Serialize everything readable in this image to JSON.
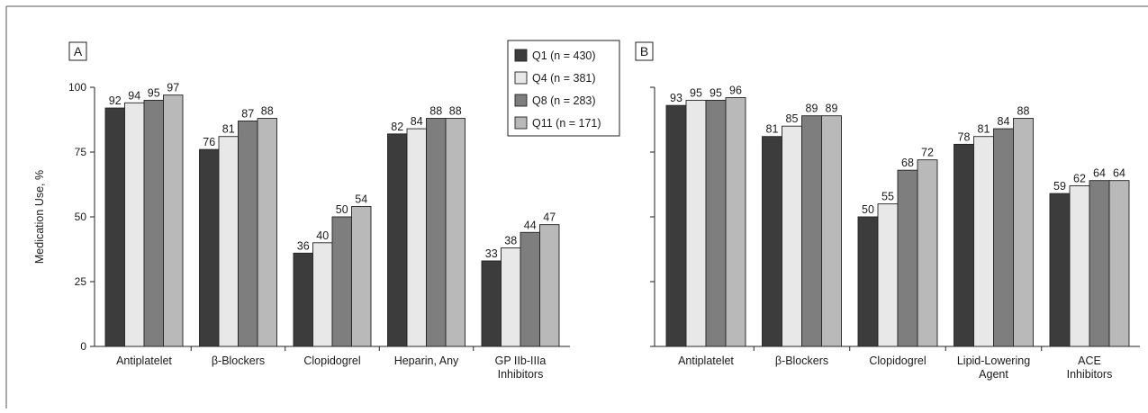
{
  "colors": {
    "Q1": "#3c3c3c",
    "Q4": "#e8e8e8",
    "Q8": "#7e7e7e",
    "Q11": "#b9b9b9",
    "axis": "#222222",
    "frame": "#555555"
  },
  "legend": {
    "entries": [
      "Q1 (n = 430)",
      "Q4 (n = 381)",
      "Q8 (n = 283)",
      "Q11 (n = 171)"
    ]
  },
  "chart_data": [
    {
      "type": "bar",
      "panel": "A",
      "ylabel": "Medication Use, %",
      "ylim": [
        0,
        100
      ],
      "yticks": [
        "0",
        "25",
        "50",
        "75",
        "100"
      ],
      "categories": [
        [
          "Antiplatelet"
        ],
        [
          "β-Blockers"
        ],
        [
          "Clopidogrel"
        ],
        [
          "Heparin, Any"
        ],
        [
          "GP IIb-IIIa",
          "Inhibitors"
        ]
      ],
      "series": [
        {
          "name": "Q1 (n = 430)",
          "values": [
            92,
            76,
            36,
            82,
            33
          ]
        },
        {
          "name": "Q4 (n = 381)",
          "values": [
            94,
            81,
            40,
            84,
            38
          ]
        },
        {
          "name": "Q8 (n = 283)",
          "values": [
            95,
            87,
            50,
            88,
            44
          ]
        },
        {
          "name": "Q11 (n = 171)",
          "values": [
            97,
            88,
            54,
            88,
            47
          ]
        }
      ]
    },
    {
      "type": "bar",
      "panel": "B",
      "ylim": [
        0,
        100
      ],
      "categories": [
        [
          "Antiplatelet"
        ],
        [
          "β-Blockers"
        ],
        [
          "Clopidogrel"
        ],
        [
          "Lipid-Lowering",
          "Agent"
        ],
        [
          "ACE",
          "Inhibitors"
        ]
      ],
      "series": [
        {
          "name": "Q1 (n = 430)",
          "values": [
            93,
            81,
            50,
            78,
            59
          ]
        },
        {
          "name": "Q4 (n = 381)",
          "values": [
            95,
            85,
            55,
            81,
            62
          ]
        },
        {
          "name": "Q8 (n = 283)",
          "values": [
            95,
            89,
            68,
            84,
            64
          ]
        },
        {
          "name": "Q11 (n = 171)",
          "values": [
            96,
            89,
            72,
            88,
            64
          ]
        }
      ]
    }
  ]
}
